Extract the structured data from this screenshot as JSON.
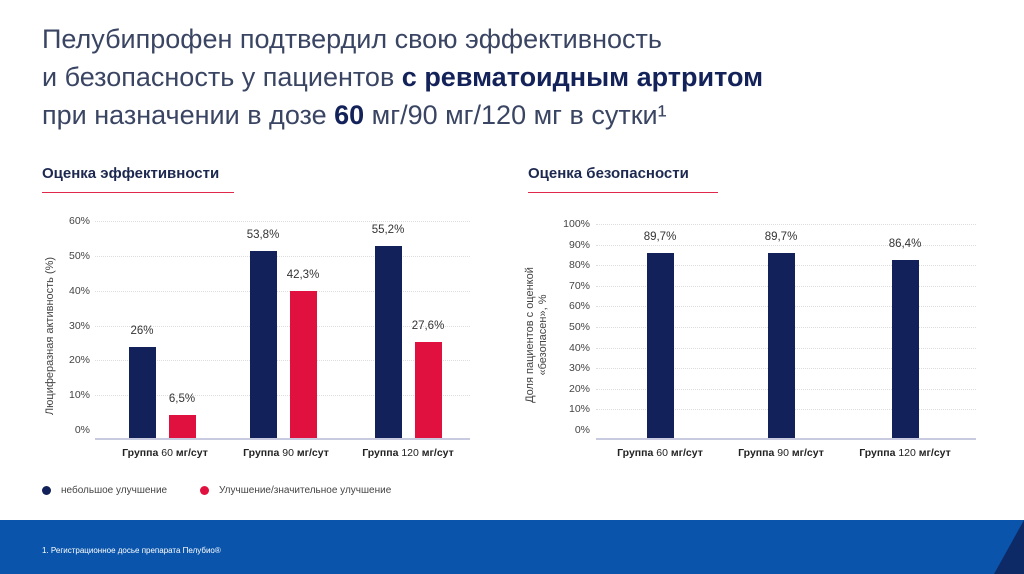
{
  "title": {
    "line1": "Пелубипрофен подтвердил свою эффективность",
    "line2_pre": "и безопасность у пациентов ",
    "line2_bold": "с ревматоидным артритом",
    "line3_pre": "при назначении в дозе ",
    "line3_bold": "60",
    "line3_post": "  мг/90 мг/120 мг в сутки¹"
  },
  "colors": {
    "navy": "#13215a",
    "red": "#e0103f",
    "footer": "#0a55ab"
  },
  "chart_data": [
    {
      "type": "bar",
      "title": "Оценка эффективности",
      "ylabel": "Люциферазная активность (%)",
      "ylim": [
        0,
        60
      ],
      "yticks": [
        "0%",
        "10%",
        "20%",
        "30%",
        "40%",
        "50%",
        "60%"
      ],
      "categories": [
        {
          "bold": "Группа",
          "dose": "60",
          "unit": "мг/сут"
        },
        {
          "bold": "Группа",
          "dose": "90",
          "unit": "мг/сут"
        },
        {
          "bold": "Группа",
          "dose": "120",
          "unit": "мг/сут"
        }
      ],
      "series": [
        {
          "name": "небольшое улучшение",
          "values": [
            26,
            53.8,
            55.2
          ],
          "labels": [
            "26%",
            "53,8%",
            "55,2%"
          ]
        },
        {
          "name": "Улучшение/значительное улучшение",
          "values": [
            6.5,
            42.3,
            27.6
          ],
          "labels": [
            "6,5%",
            "42,3%",
            "27,6%"
          ]
        }
      ],
      "legend": "bottom"
    },
    {
      "type": "bar",
      "title": "Оценка безопасности",
      "ylabel1": "Доля пациентов с оценкой",
      "ylabel2": "«безопасен», %",
      "ylim": [
        0,
        100
      ],
      "yticks": [
        "0%",
        "10%",
        "20%",
        "30%",
        "40%",
        "50%",
        "60%",
        "70%",
        "80%",
        "90%",
        "100%"
      ],
      "categories": [
        {
          "bold": "Группа",
          "dose": "60",
          "unit": "мг/сут"
        },
        {
          "bold": "Группа",
          "dose": "90",
          "unit": "мг/сут"
        },
        {
          "bold": "Группа",
          "dose": "120",
          "unit": "мг/сут"
        }
      ],
      "series": [
        {
          "name": "безопасен",
          "values": [
            89.7,
            89.7,
            86.4
          ],
          "labels": [
            "89,7%",
            "89,7%",
            "86,4%"
          ]
        }
      ]
    }
  ],
  "footer": {
    "reference": "1. Регистрационное досье препарата Пелубио®"
  }
}
